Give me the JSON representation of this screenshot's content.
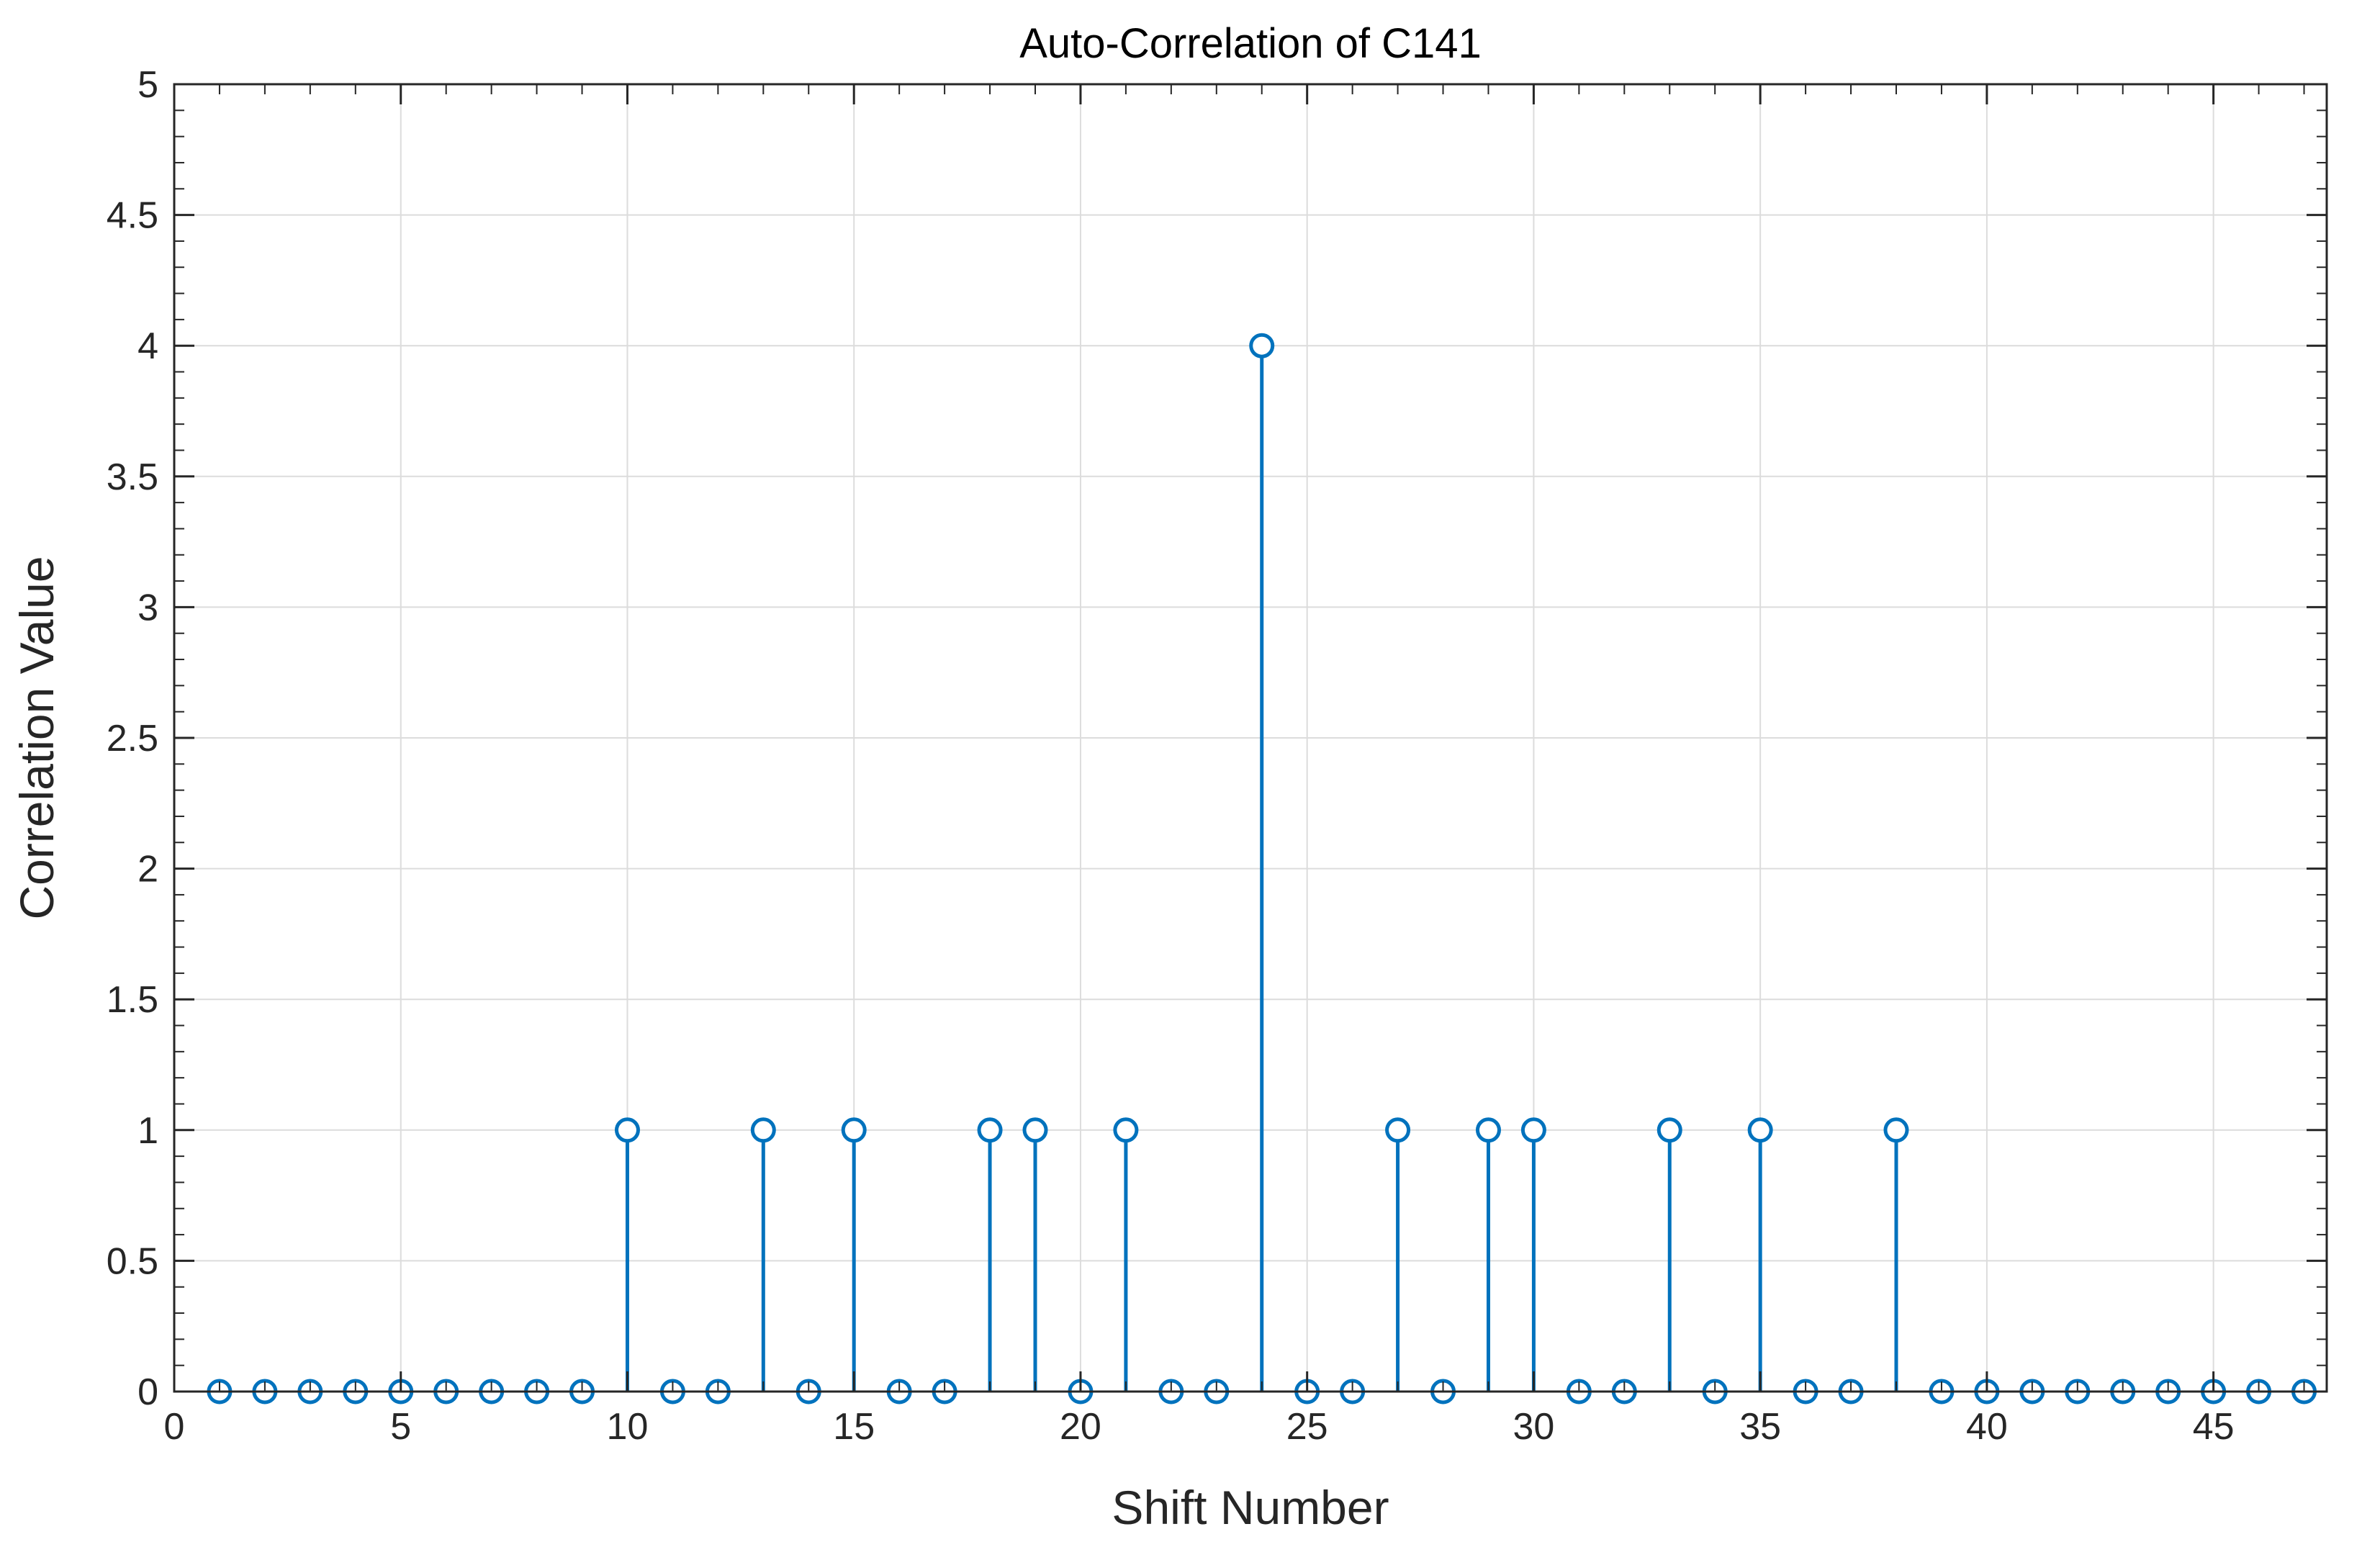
{
  "chart_data": {
    "type": "stem",
    "title": "Auto-Correlation of C141",
    "xlabel": "Shift Number",
    "ylabel": "Correlation Value",
    "xlim": [
      0,
      47.5
    ],
    "ylim": [
      0,
      5
    ],
    "xticks": [
      "0",
      "5",
      "10",
      "15",
      "20",
      "25",
      "30",
      "35",
      "40",
      "45"
    ],
    "yticks": [
      "0",
      "0.5",
      "1",
      "1.5",
      "2",
      "2.5",
      "3",
      "3.5",
      "4",
      "4.5",
      "5"
    ],
    "grid": true,
    "box": true,
    "marker": "circle",
    "color": "#0072BD",
    "series": [
      {
        "x": [
          1,
          2,
          3,
          4,
          5,
          6,
          7,
          8,
          9,
          10,
          11,
          12,
          13,
          14,
          15,
          16,
          17,
          18,
          19,
          20,
          21,
          22,
          23,
          24,
          25,
          26,
          27,
          28,
          29,
          30,
          31,
          32,
          33,
          34,
          35,
          36,
          37,
          38,
          39,
          40,
          41,
          42,
          43,
          44,
          45,
          46,
          47
        ],
        "values": [
          0,
          0,
          0,
          0,
          0,
          0,
          0,
          0,
          0,
          1,
          0,
          0,
          1,
          0,
          1,
          0,
          0,
          1,
          1,
          0,
          1,
          0,
          0,
          4,
          0,
          0,
          1,
          0,
          1,
          1,
          0,
          0,
          1,
          0,
          1,
          0,
          0,
          1,
          0,
          0,
          0,
          0,
          0,
          0,
          0,
          0,
          0
        ]
      }
    ]
  }
}
